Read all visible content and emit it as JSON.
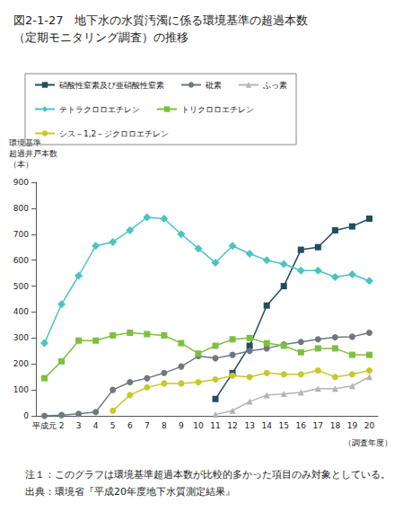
{
  "chart_data": {
    "type": "line",
    "title": "図2-1-27　地下水の水質汚濁に係る環境基準の超過本数\n（定期モニタリング調査）の推移",
    "y_label": "環境基準\n超過井戸本数\n（本）",
    "x_label": "（調査年度）",
    "annotations": [
      "注１：このグラフは環境基準超過本数が比較的多かった項目のみ対象としている。",
      "出典：環境省『平成20年度地下水質測定結果』"
    ],
    "categories": [
      "平成元",
      "2",
      "3",
      "4",
      "5",
      "6",
      "7",
      "8",
      "9",
      "10",
      "11",
      "12",
      "13",
      "14",
      "15",
      "16",
      "17",
      "18",
      "19",
      "20"
    ],
    "series": [
      {
        "name": "硝酸性窒素及び亜硝酸性窒素",
        "color": "#1f4e5f",
        "marker": "square",
        "values": [
          null,
          null,
          null,
          null,
          null,
          null,
          null,
          null,
          null,
          null,
          65,
          165,
          270,
          425,
          500,
          640,
          650,
          715,
          730,
          760
        ]
      },
      {
        "name": "砒素",
        "color": "#6e7880",
        "marker": "circle",
        "values": [
          0,
          3,
          8,
          15,
          100,
          130,
          145,
          165,
          190,
          230,
          222,
          235,
          250,
          260,
          275,
          285,
          295,
          303,
          305,
          320
        ]
      },
      {
        "name": "ふっ素",
        "color": "#b4b4b4",
        "marker": "triangle",
        "values": [
          null,
          null,
          null,
          null,
          null,
          null,
          null,
          null,
          null,
          null,
          5,
          20,
          55,
          80,
          85,
          90,
          105,
          105,
          115,
          150
        ]
      },
      {
        "name": "テトラクロロエチレン",
        "color": "#4cc3c3",
        "marker": "diamond",
        "values": [
          280,
          430,
          540,
          655,
          670,
          715,
          765,
          760,
          700,
          645,
          590,
          655,
          625,
          600,
          585,
          560,
          560,
          535,
          545,
          520
        ]
      },
      {
        "name": "トリクロロエチレン",
        "color": "#7fbf3f",
        "marker": "square",
        "values": [
          145,
          210,
          290,
          290,
          310,
          320,
          315,
          310,
          280,
          240,
          270,
          295,
          300,
          280,
          270,
          245,
          260,
          260,
          235,
          235
        ]
      },
      {
        "name": "シス－1,2－ジクロロエチレン",
        "color": "#c8c82a",
        "marker": "circle",
        "values": [
          null,
          null,
          null,
          null,
          20,
          80,
          110,
          125,
          125,
          130,
          140,
          155,
          150,
          165,
          160,
          160,
          175,
          150,
          160,
          175
        ]
      }
    ],
    "ylim": [
      0,
      900
    ],
    "yticks": [
      0,
      100,
      200,
      300,
      400,
      500,
      600,
      700,
      800,
      900
    ],
    "grid": false,
    "legend": "top"
  }
}
